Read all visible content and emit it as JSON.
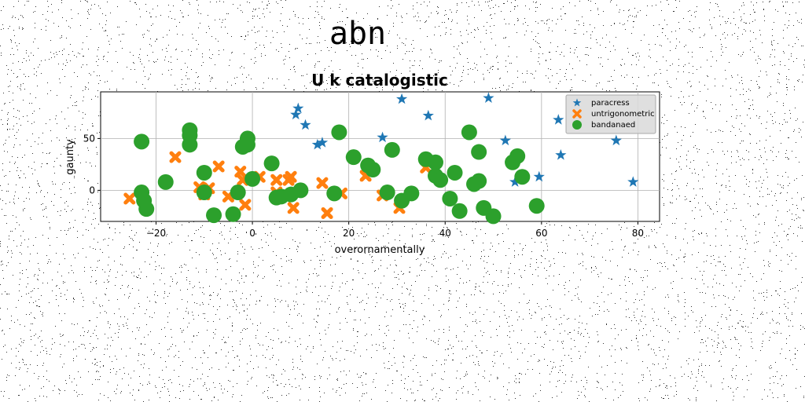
{
  "page": {
    "title": "abn"
  },
  "chart_data": {
    "type": "scatter",
    "title": "U k catalogistic",
    "xlabel": "overornamentally",
    "ylabel": "gaunty",
    "xlim": [
      -31.5,
      84.5
    ],
    "ylim": [
      -30,
      95
    ],
    "xticks": [
      -20,
      0,
      20,
      40,
      60,
      80
    ],
    "xtick_labels": [
      "−20",
      "0",
      "20",
      "40",
      "60",
      "80"
    ],
    "yticks": [
      0,
      50
    ],
    "ytick_labels": [
      "0",
      "50"
    ],
    "grid": true,
    "legend_position": "top-right",
    "series": [
      {
        "name": "paracress",
        "marker": "star",
        "color": "#1f77b4",
        "points": [
          [
            9.5,
            79
          ],
          [
            9,
            73
          ],
          [
            11,
            63
          ],
          [
            13.5,
            44
          ],
          [
            14.5,
            46
          ],
          [
            27,
            51
          ],
          [
            31,
            88
          ],
          [
            36.5,
            72
          ],
          [
            49,
            89
          ],
          [
            52.5,
            48
          ],
          [
            54.5,
            8
          ],
          [
            59.5,
            13
          ],
          [
            63.5,
            68
          ],
          [
            64,
            34
          ],
          [
            75.5,
            48
          ],
          [
            79,
            8
          ]
        ]
      },
      {
        "name": "untrigonometric",
        "marker": "x",
        "color": "#ff7f0e",
        "points": [
          [
            -25.5,
            -8
          ],
          [
            -16,
            32
          ],
          [
            -11,
            3
          ],
          [
            -10,
            -4
          ],
          [
            -9,
            2
          ],
          [
            -7,
            23
          ],
          [
            -5,
            -6
          ],
          [
            -2.5,
            18
          ],
          [
            -2,
            10
          ],
          [
            -1.5,
            -14
          ],
          [
            1.5,
            13
          ],
          [
            5,
            10
          ],
          [
            5,
            -2
          ],
          [
            7.5,
            10
          ],
          [
            8,
            13
          ],
          [
            8.5,
            -17
          ],
          [
            14.5,
            7
          ],
          [
            15.5,
            -22
          ],
          [
            18.5,
            -3
          ],
          [
            23.5,
            14
          ],
          [
            27,
            -5
          ],
          [
            30.5,
            -17
          ],
          [
            36,
            22
          ]
        ]
      },
      {
        "name": "bandanaed",
        "marker": "circle",
        "color": "#2ca02c",
        "points": [
          [
            -23,
            47
          ],
          [
            -23,
            -2
          ],
          [
            -22.5,
            -10
          ],
          [
            -22,
            -18
          ],
          [
            -18,
            8
          ],
          [
            -13,
            58
          ],
          [
            -13,
            53
          ],
          [
            -13,
            44
          ],
          [
            -10,
            17
          ],
          [
            -10,
            -2
          ],
          [
            -8,
            -24
          ],
          [
            -4,
            -23
          ],
          [
            -3,
            -2
          ],
          [
            -2,
            42
          ],
          [
            -1,
            44
          ],
          [
            -1,
            50
          ],
          [
            0,
            11
          ],
          [
            4,
            26
          ],
          [
            5,
            -7
          ],
          [
            6,
            -6
          ],
          [
            8,
            -4
          ],
          [
            10,
            0
          ],
          [
            17,
            -3
          ],
          [
            18,
            56
          ],
          [
            21,
            32
          ],
          [
            24,
            24
          ],
          [
            25,
            20
          ],
          [
            28,
            -2
          ],
          [
            29,
            39
          ],
          [
            31,
            -10
          ],
          [
            33,
            -3
          ],
          [
            36,
            30
          ],
          [
            38,
            27
          ],
          [
            38,
            14
          ],
          [
            39,
            10
          ],
          [
            41,
            -8
          ],
          [
            42,
            17
          ],
          [
            43,
            -20
          ],
          [
            45,
            56
          ],
          [
            46,
            6
          ],
          [
            47,
            9
          ],
          [
            47,
            37
          ],
          [
            48,
            -17
          ],
          [
            50,
            -25
          ],
          [
            54,
            27
          ],
          [
            55,
            33
          ],
          [
            56,
            13
          ],
          [
            59,
            -15
          ]
        ]
      }
    ]
  }
}
